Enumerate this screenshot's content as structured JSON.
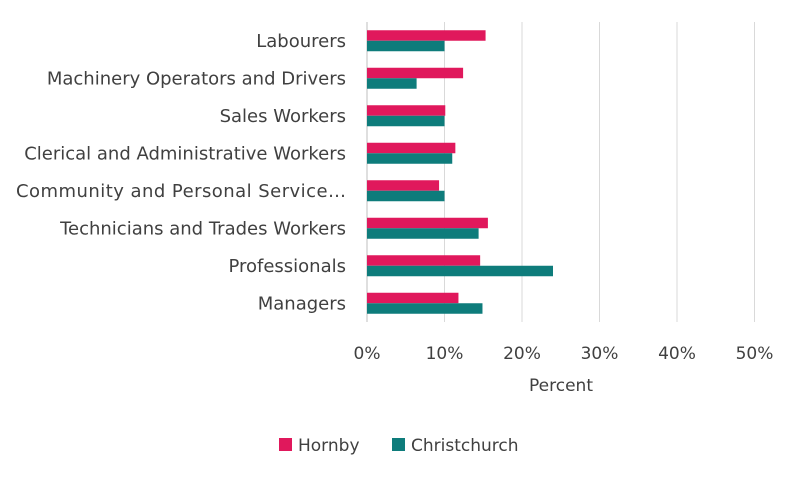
{
  "chart_data": {
    "type": "bar",
    "orientation": "horizontal",
    "title": "",
    "xlabel": "Percent",
    "ylabel": "",
    "xlim": [
      0,
      50
    ],
    "x_ticks": [
      "0%",
      "10%",
      "20%",
      "30%",
      "40%",
      "50%"
    ],
    "categories": [
      "Labourers",
      "Machinery Operators and Drivers",
      "Sales Workers",
      "Clerical and Administrative Workers",
      "Community and Personal Service…",
      "Technicians and Trades Workers",
      "Professionals",
      "Managers"
    ],
    "series": [
      {
        "name": "Hornby",
        "color": "#e0185c",
        "values": [
          15.3,
          12.4,
          10.1,
          11.4,
          9.3,
          15.6,
          14.6,
          11.8
        ]
      },
      {
        "name": "Christchurch",
        "color": "#0e7c7b",
        "values": [
          10.0,
          6.4,
          10.0,
          11.0,
          10.0,
          14.4,
          24.0,
          14.9
        ]
      }
    ],
    "grid": true,
    "legend_position": "bottom"
  }
}
